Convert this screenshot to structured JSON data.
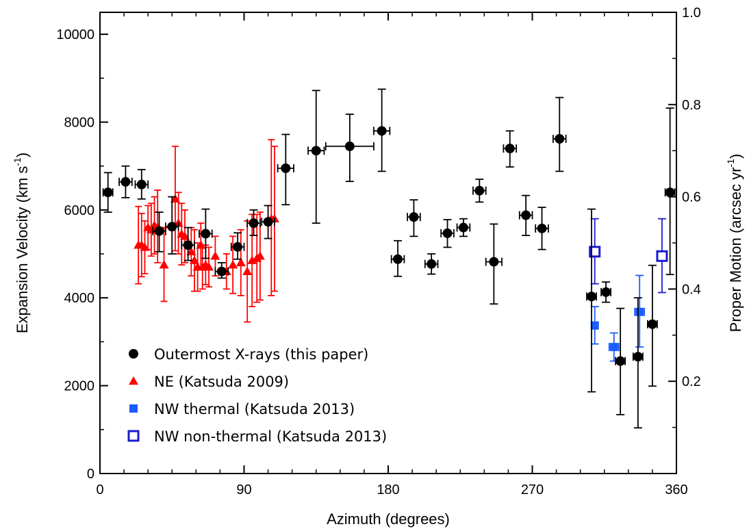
{
  "chart_data": {
    "type": "scatter",
    "xlabel": "Azimuth (degrees)",
    "ylabel": "Expansion Velocity (km s-1)",
    "ylabel_parts": {
      "main": "Expansion Velocity (km s",
      "sup": "-1",
      "close": ")"
    },
    "y2label": "Proper Motion (arcsec yr-1)",
    "y2label_parts": {
      "main": "Proper Motion (arcsec yr",
      "sup": "-1",
      "close": ")"
    },
    "xlim": [
      0,
      360
    ],
    "ylim": [
      0,
      10500
    ],
    "y2lim": [
      0,
      1.0
    ],
    "xticks": [
      0,
      90,
      180,
      270,
      360
    ],
    "yticks": [
      0,
      2000,
      4000,
      6000,
      8000,
      10000
    ],
    "y2ticks": [
      0.2,
      0.4,
      0.6,
      0.8,
      1.0
    ],
    "y2tick_labels": [
      "0.2",
      "0.4",
      "0.6",
      "0.8",
      "1.0"
    ],
    "grid": false,
    "legend_position": "bottom-left",
    "series": [
      {
        "name": "Outermost X-rays (this paper)",
        "marker": "circle",
        "color": "#000000",
        "points": [
          {
            "x": 5,
            "y": 6400,
            "ylo": 5950,
            "yhi": 6850,
            "xerr": 3
          },
          {
            "x": 16,
            "y": 6640,
            "ylo": 6280,
            "yhi": 7000,
            "xerr": 4
          },
          {
            "x": 26,
            "y": 6580,
            "ylo": 6250,
            "yhi": 6920,
            "xerr": 4
          },
          {
            "x": 37,
            "y": 5520,
            "ylo": 5050,
            "yhi": 5950,
            "xerr": 4
          },
          {
            "x": 45,
            "y": 5620,
            "ylo": 5000,
            "yhi": 6300,
            "xerr": 4
          },
          {
            "x": 55,
            "y": 5200,
            "ylo": 4850,
            "yhi": 5600,
            "xerr": 4
          },
          {
            "x": 66,
            "y": 5460,
            "ylo": 4900,
            "yhi": 6020,
            "xerr": 4
          },
          {
            "x": 76,
            "y": 4600,
            "ylo": 4450,
            "yhi": 4800,
            "xerr": 4
          },
          {
            "x": 86,
            "y": 5160,
            "ylo": 4880,
            "yhi": 5480,
            "xerr": 4
          },
          {
            "x": 96,
            "y": 5700,
            "ylo": 5420,
            "yhi": 6000,
            "xerr": 4
          },
          {
            "x": 105,
            "y": 5730,
            "ylo": 5350,
            "yhi": 6100,
            "xerr": 4
          },
          {
            "x": 116,
            "y": 6950,
            "ylo": 6120,
            "yhi": 7720,
            "xerr": 5
          },
          {
            "x": 135,
            "y": 7350,
            "ylo": 5700,
            "yhi": 8720,
            "xerr": 5
          },
          {
            "x": 156,
            "y": 7450,
            "ylo": 6650,
            "yhi": 8180,
            "xerr": 15
          },
          {
            "x": 176,
            "y": 7800,
            "ylo": 6880,
            "yhi": 8750,
            "xerr": 5
          },
          {
            "x": 186,
            "y": 4880,
            "ylo": 4490,
            "yhi": 5300,
            "xerr": 4
          },
          {
            "x": 196,
            "y": 5840,
            "ylo": 5400,
            "yhi": 6230,
            "xerr": 4
          },
          {
            "x": 207,
            "y": 4770,
            "ylo": 4540,
            "yhi": 5000,
            "xerr": 4
          },
          {
            "x": 217,
            "y": 5470,
            "ylo": 5150,
            "yhi": 5780,
            "xerr": 4
          },
          {
            "x": 227,
            "y": 5600,
            "ylo": 5400,
            "yhi": 5800,
            "xerr": 4
          },
          {
            "x": 237,
            "y": 6440,
            "ylo": 6180,
            "yhi": 6700,
            "xerr": 4
          },
          {
            "x": 246,
            "y": 4820,
            "ylo": 3860,
            "yhi": 5680,
            "xerr": 5
          },
          {
            "x": 256,
            "y": 7400,
            "ylo": 6980,
            "yhi": 7800,
            "xerr": 4
          },
          {
            "x": 266,
            "y": 5880,
            "ylo": 5420,
            "yhi": 6330,
            "xerr": 4
          },
          {
            "x": 276,
            "y": 5580,
            "ylo": 5100,
            "yhi": 6060,
            "xerr": 4
          },
          {
            "x": 287,
            "y": 7620,
            "ylo": 6880,
            "yhi": 8560,
            "xerr": 4
          },
          {
            "x": 307,
            "y": 4030,
            "ylo": 1860,
            "yhi": 6020,
            "xerr": 3
          },
          {
            "x": 316,
            "y": 4130,
            "ylo": 3900,
            "yhi": 4360,
            "xerr": 3
          },
          {
            "x": 325,
            "y": 2560,
            "ylo": 1340,
            "yhi": 3760,
            "xerr": 3
          },
          {
            "x": 336,
            "y": 2660,
            "ylo": 1040,
            "yhi": 4000,
            "xerr": 3
          },
          {
            "x": 345,
            "y": 3400,
            "ylo": 1990,
            "yhi": 4740,
            "xerr": 3
          },
          {
            "x": 356,
            "y": 6400,
            "ylo": 4530,
            "yhi": 8320,
            "xerr": 3
          }
        ]
      },
      {
        "name": "NE (Katsuda 2009)",
        "marker": "triangle",
        "color": "#ff0000",
        "points": [
          {
            "x": 24,
            "y": 5200,
            "ylo": 4320,
            "yhi": 6080
          },
          {
            "x": 26,
            "y": 5200,
            "ylo": 4480,
            "yhi": 5920
          },
          {
            "x": 28,
            "y": 5150,
            "ylo": 4550,
            "yhi": 5750
          },
          {
            "x": 30,
            "y": 5600,
            "ylo": 5100,
            "yhi": 6100
          },
          {
            "x": 32,
            "y": 5550,
            "ylo": 4950,
            "yhi": 6150
          },
          {
            "x": 34,
            "y": 5650,
            "ylo": 5000,
            "yhi": 6300
          },
          {
            "x": 36,
            "y": 5600,
            "ylo": 4800,
            "yhi": 6450
          },
          {
            "x": 40,
            "y": 4750,
            "ylo": 3920,
            "yhi": 5600
          },
          {
            "x": 47,
            "y": 6250,
            "ylo": 5070,
            "yhi": 7450
          },
          {
            "x": 49,
            "y": 5700,
            "ylo": 5000,
            "yhi": 6400
          },
          {
            "x": 51,
            "y": 5450,
            "ylo": 4750,
            "yhi": 6150
          },
          {
            "x": 53,
            "y": 5400,
            "ylo": 4800,
            "yhi": 6000
          },
          {
            "x": 57,
            "y": 5050,
            "ylo": 4500,
            "yhi": 5600
          },
          {
            "x": 59,
            "y": 4850,
            "ylo": 4150,
            "yhi": 5550
          },
          {
            "x": 61,
            "y": 4700,
            "ylo": 4150,
            "yhi": 5250
          },
          {
            "x": 63,
            "y": 5200,
            "ylo": 4700,
            "yhi": 5700
          },
          {
            "x": 64,
            "y": 4700,
            "ylo": 4200,
            "yhi": 5200
          },
          {
            "x": 66,
            "y": 4750,
            "ylo": 4300,
            "yhi": 5200
          },
          {
            "x": 68,
            "y": 4700,
            "ylo": 4250,
            "yhi": 5150
          },
          {
            "x": 72,
            "y": 4950,
            "ylo": 4500,
            "yhi": 5400
          },
          {
            "x": 79,
            "y": 4600,
            "ylo": 4200,
            "yhi": 5000
          },
          {
            "x": 83,
            "y": 4750,
            "ylo": 4100,
            "yhi": 5400
          },
          {
            "x": 88,
            "y": 4800,
            "ylo": 4050,
            "yhi": 5550
          },
          {
            "x": 92,
            "y": 4600,
            "ylo": 3450,
            "yhi": 5750
          },
          {
            "x": 95,
            "y": 4850,
            "ylo": 3800,
            "yhi": 5900
          },
          {
            "x": 98,
            "y": 4900,
            "ylo": 3900,
            "yhi": 5900
          },
          {
            "x": 100,
            "y": 4950,
            "ylo": 3950,
            "yhi": 5950
          },
          {
            "x": 107,
            "y": 5800,
            "ylo": 4050,
            "yhi": 7600
          },
          {
            "x": 109,
            "y": 5800,
            "ylo": 4150,
            "yhi": 7450
          }
        ]
      },
      {
        "name": "NW thermal (Katsuda 2013)",
        "marker": "square",
        "color": "#1a5cff",
        "points": [
          {
            "x": 309,
            "y": 3370,
            "ylo": 2950,
            "yhi": 3800,
            "xerr": 1.5
          },
          {
            "x": 321,
            "y": 2880,
            "ylo": 2560,
            "yhi": 3200,
            "xerr": 3
          },
          {
            "x": 337,
            "y": 3680,
            "ylo": 2880,
            "yhi": 4510,
            "xerr": 3
          }
        ]
      },
      {
        "name": "NW non-thermal (Katsuda 2013)",
        "marker": "open-square",
        "color": "#1a1acc",
        "points": [
          {
            "x": 309,
            "y": 5050,
            "ylo": 4320,
            "yhi": 5800,
            "xerr": 1.5
          },
          {
            "x": 351,
            "y": 4950,
            "ylo": 4120,
            "yhi": 5800,
            "xerr": 2
          }
        ]
      }
    ]
  }
}
